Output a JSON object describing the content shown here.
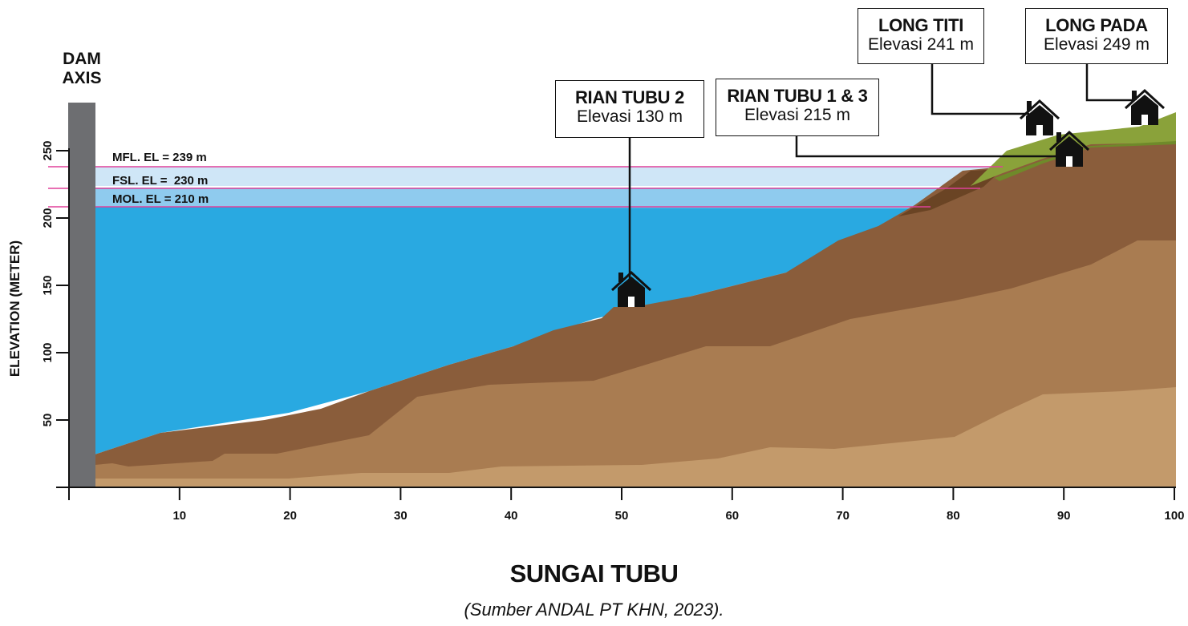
{
  "chart_data": {
    "type": "area",
    "title": "SUNGAI TUBU",
    "subtitle": "(Sumber ANDAL PT KHN, 2023).",
    "xlabel": "",
    "ylabel": "ELEVATION (METER)",
    "xlim": [
      0,
      100
    ],
    "ylim": [
      0,
      280
    ],
    "x_ticks": [
      10,
      20,
      30,
      40,
      50,
      60,
      70,
      80,
      90,
      100
    ],
    "y_ticks": [
      50,
      100,
      150,
      200,
      250
    ],
    "dam_axis_label": [
      "DAM",
      "AXIS"
    ],
    "water_levels": [
      {
        "label": "MFL. EL = 239 m",
        "elevation": 239
      },
      {
        "label": "FSL. EL =  230 m",
        "elevation": 230
      },
      {
        "label": "MOL. EL = 210 m",
        "elevation": 210
      }
    ],
    "settlements": [
      {
        "name": "RIAN TUBU 2",
        "elevation_label": "Elevasi 130 m",
        "elevation": 130,
        "x": 51
      },
      {
        "name": "RIAN TUBU 1 & 3",
        "elevation_label": "Elevasi 215 m",
        "elevation": 215,
        "x": 91
      },
      {
        "name": "LONG TITI",
        "elevation_label": "Elevasi 241 m",
        "elevation": 241,
        "x": 88
      },
      {
        "name": "LONG PADA",
        "elevation_label": "Elevasi 249 m",
        "elevation": 249,
        "x": 97
      }
    ]
  },
  "colors": {
    "water": "#29a9e1",
    "fsl_band": "#8fcbee",
    "mfl_band": "#cfe6f7",
    "water_level_line": "#e0419a",
    "soil_top": "#8a5d3b",
    "soil_mid": "#a97c51",
    "soil_bottom": "#c39a6b",
    "grass": "#8aa23a",
    "dam": "#6d6e71"
  },
  "icons": [
    "house-icon"
  ]
}
